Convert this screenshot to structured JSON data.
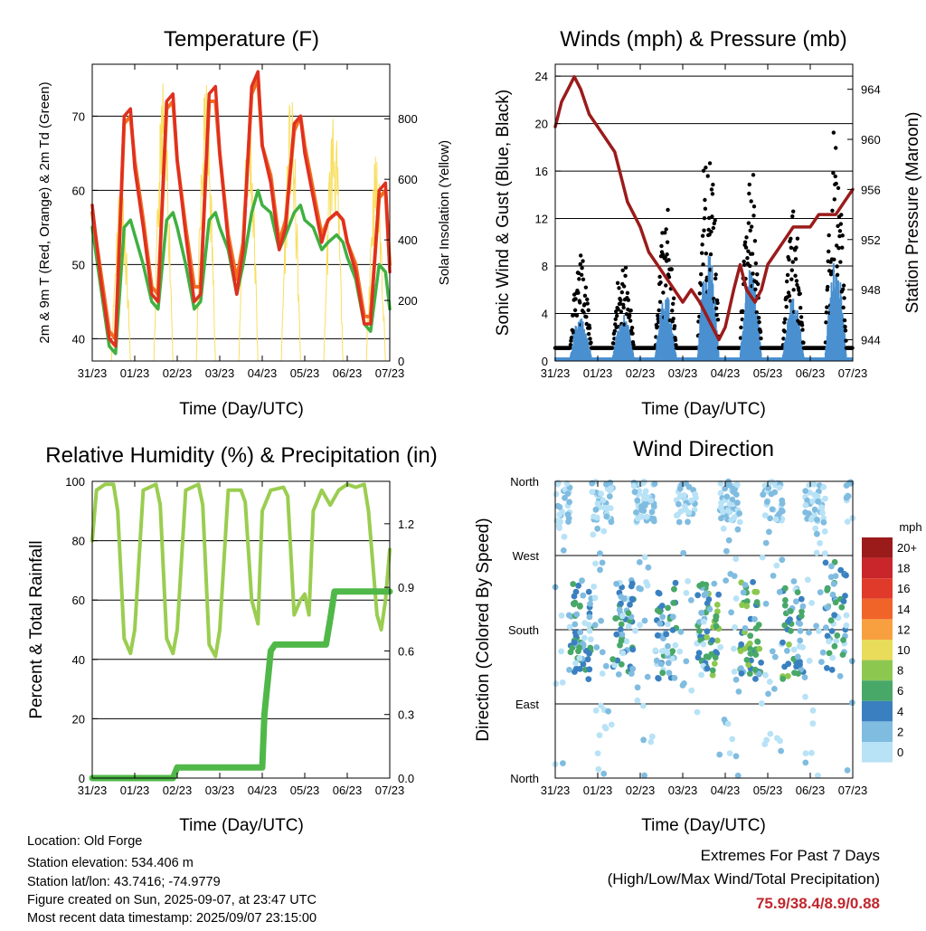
{
  "chart_data": [
    {
      "type": "line",
      "title": "Temperature (F)",
      "xlabel": "Time (Day/UTC)",
      "ylabel": "2m & 9m T (Red, Orange) & 2m Td (Green)",
      "y2label": "Solar Insolation (Yellow)",
      "ylim": [
        37,
        77
      ],
      "y2lim": [
        0,
        980
      ],
      "yticks": [
        40,
        50,
        60,
        70
      ],
      "y2ticks": [
        0,
        200,
        400,
        600,
        800
      ],
      "x_ticks": [
        "31/23",
        "01/23",
        "02/23",
        "03/23",
        "04/23",
        "05/23",
        "06/23",
        "07/23"
      ],
      "series": [
        {
          "color": "#e03020",
          "x": [
            0,
            0.2,
            0.4,
            0.55,
            0.75,
            0.9,
            1,
            1.2,
            1.4,
            1.55,
            1.75,
            1.9,
            2,
            2.2,
            2.4,
            2.55,
            2.75,
            2.9,
            3,
            3.2,
            3.4,
            3.55,
            3.75,
            3.9,
            4,
            4.2,
            4.4,
            4.55,
            4.75,
            4.9,
            5,
            5.2,
            5.4,
            5.55,
            5.75,
            5.9,
            6,
            6.2,
            6.4,
            6.55,
            6.75,
            6.9,
            7
          ],
          "y": [
            58,
            48,
            40,
            39,
            70,
            71,
            63,
            55,
            46,
            45,
            72,
            73,
            64,
            54,
            45,
            46,
            73,
            74,
            65,
            53,
            46,
            52,
            74,
            76,
            66,
            61,
            52,
            55,
            69,
            70,
            65,
            59,
            53,
            56,
            57,
            56,
            53,
            49,
            42,
            42,
            60,
            61,
            49
          ]
        },
        {
          "color": "#f07020",
          "x": [
            0,
            0.2,
            0.4,
            0.55,
            0.75,
            0.9,
            1,
            1.2,
            1.4,
            1.55,
            1.75,
            1.9,
            2,
            2.2,
            2.4,
            2.55,
            2.75,
            2.9,
            3,
            3.2,
            3.4,
            3.55,
            3.75,
            3.9,
            4,
            4.2,
            4.4,
            4.55,
            4.75,
            4.9,
            5,
            5.2,
            5.4,
            5.55,
            5.75,
            5.9,
            6,
            6.2,
            6.4,
            6.55,
            6.75,
            6.9,
            7
          ],
          "y": [
            57,
            49,
            41,
            40,
            69,
            70,
            64,
            56,
            47,
            46,
            71,
            72,
            64,
            55,
            47,
            47,
            72,
            72,
            65,
            54,
            48,
            53,
            73,
            75,
            66,
            62,
            53,
            56,
            68,
            70,
            66,
            60,
            54,
            56,
            57,
            56,
            53,
            50,
            43,
            43,
            59,
            60,
            50
          ]
        },
        {
          "color": "#40b040",
          "x": [
            0,
            0.2,
            0.4,
            0.55,
            0.75,
            0.9,
            1,
            1.2,
            1.4,
            1.55,
            1.75,
            1.9,
            2,
            2.2,
            2.4,
            2.55,
            2.75,
            2.9,
            3,
            3.2,
            3.4,
            3.55,
            3.75,
            3.9,
            4,
            4.2,
            4.4,
            4.55,
            4.75,
            4.9,
            5,
            5.2,
            5.4,
            5.55,
            5.75,
            5.9,
            6,
            6.2,
            6.4,
            6.55,
            6.75,
            6.9,
            7
          ],
          "y": [
            55,
            47,
            39,
            38,
            55,
            56,
            54,
            50,
            45,
            44,
            56,
            57,
            55,
            50,
            44,
            45,
            56,
            57,
            55,
            52,
            46,
            50,
            57,
            60,
            58,
            57,
            52,
            54,
            57,
            58,
            56,
            55,
            52,
            53,
            54,
            53,
            51,
            48,
            42,
            41,
            50,
            49,
            44
          ]
        }
      ]
    },
    {
      "type": "line",
      "title": "Winds (mph) & Pressure (mb)",
      "xlabel": "Time (Day/UTC)",
      "ylabel": "Sonic Wind & Gust (Blue, Black)",
      "y2label": "Station Pressure (Maroon)",
      "ylim": [
        0,
        25
      ],
      "y2lim": [
        942.3,
        966
      ],
      "yticks": [
        0,
        4,
        8,
        12,
        16,
        20,
        24
      ],
      "y2ticks": [
        944,
        948,
        952,
        956,
        960,
        964
      ],
      "x_ticks": [
        "31/23",
        "01/23",
        "02/23",
        "03/23",
        "04/23",
        "05/23",
        "06/23",
        "07/23"
      ],
      "series": [
        {
          "color": "#9b1b1b",
          "x": [
            0,
            0.15,
            0.3,
            0.45,
            0.6,
            0.8,
            1,
            1.2,
            1.4,
            1.55,
            1.7,
            1.85,
            2,
            2.2,
            2.4,
            2.6,
            2.8,
            3,
            3.2,
            3.4,
            3.55,
            3.7,
            3.85,
            4,
            4.2,
            4.35,
            4.5,
            4.7,
            4.85,
            5,
            5.2,
            5.4,
            5.6,
            5.8,
            6,
            6.2,
            6.4,
            6.6,
            6.8,
            7
          ],
          "y": [
            961,
            963,
            964,
            965,
            964,
            962,
            961,
            960,
            959,
            957,
            955,
            954,
            953,
            951,
            950,
            949,
            948,
            947,
            948,
            947,
            946,
            945,
            944,
            945,
            948,
            950,
            948,
            947,
            948,
            950,
            951,
            952,
            953,
            953,
            953,
            954,
            954,
            954,
            955,
            956
          ]
        }
      ]
    },
    {
      "type": "line",
      "title": "Relative Humidity (%) & Precipitation (in)",
      "xlabel": "Time (Day/UTC)",
      "ylabel": "Percent & Total Rainfall",
      "ylim": [
        0,
        100
      ],
      "y2lim": [
        0,
        1.4
      ],
      "yticks": [
        0,
        20,
        40,
        60,
        80,
        100
      ],
      "y2ticks": [
        "0.0",
        "0.3",
        "0.6",
        "0.9",
        "1.2"
      ],
      "x_ticks": [
        "31/23",
        "01/23",
        "02/23",
        "03/23",
        "04/23",
        "05/23",
        "06/23",
        "07/23"
      ],
      "series": [
        {
          "color": "#9acd50",
          "x": [
            0,
            0.1,
            0.3,
            0.5,
            0.6,
            0.75,
            0.9,
            1,
            1.2,
            1.5,
            1.6,
            1.75,
            1.9,
            2,
            2.2,
            2.5,
            2.6,
            2.75,
            2.9,
            3,
            3.2,
            3.5,
            3.6,
            3.75,
            3.9,
            4,
            4.2,
            4.5,
            4.6,
            4.75,
            4.9,
            5,
            5.1,
            5.2,
            5.4,
            5.6,
            5.8,
            6,
            6.2,
            6.4,
            6.5,
            6.7,
            6.8,
            6.9,
            7
          ],
          "y": [
            80,
            97,
            99,
            99,
            90,
            47,
            42,
            50,
            97,
            99,
            92,
            47,
            42,
            50,
            97,
            99,
            92,
            45,
            41,
            50,
            97,
            97,
            93,
            60,
            52,
            90,
            97,
            98,
            95,
            55,
            60,
            62,
            55,
            90,
            97,
            92,
            97,
            99,
            98,
            99,
            90,
            55,
            50,
            60,
            77
          ]
        },
        {
          "color": "#50b848",
          "x": [
            0,
            1.9,
            2.0,
            4.0,
            4.05,
            4.1,
            4.15,
            4.2,
            4.3,
            5.5,
            5.6,
            5.7,
            6.3,
            7
          ],
          "y": [
            0,
            0,
            0.05,
            0.05,
            0.3,
            0.4,
            0.5,
            0.6,
            0.63,
            0.63,
            0.75,
            0.88,
            0.88,
            0.88
          ]
        }
      ]
    },
    {
      "type": "scatter",
      "title": "Wind Direction",
      "xlabel": "Time (Day/UTC)",
      "ylabel": "Direction (Colored By Speed)",
      "y_ticks": [
        "North",
        "West",
        "South",
        "East",
        "North"
      ],
      "x_ticks": [
        "31/23",
        "01/23",
        "02/23",
        "03/23",
        "04/23",
        "05/23",
        "06/23",
        "07/23"
      ],
      "legend_title": "mph",
      "legend_labels": [
        "20+",
        "18",
        "16",
        "14",
        "12",
        "10",
        "8",
        "6",
        "4",
        "2",
        "0"
      ],
      "legend_colors": [
        "#9b1b1b",
        "#c8262a",
        "#e03a2a",
        "#f0642a",
        "#f8a040",
        "#e8dc5a",
        "#8cc850",
        "#48a868",
        "#3a80c0",
        "#80bce0",
        "#b8e2f6"
      ],
      "legend_position": "right"
    }
  ],
  "info": {
    "location": "Location: Old Forge",
    "elevation": "Station elevation: 534.406 m",
    "latlon": "Station lat/lon: 43.7416; -74.9779",
    "created": "Figure created on Sun, 2025-09-07, at 23:47 UTC",
    "recent": "Most recent data timestamp: 2025/09/07 23:15:00"
  },
  "extremes": {
    "title": "Extremes For Past 7 Days",
    "subtitle": "(High/Low/Max Wind/Total Precipitation)",
    "values": "75.9/38.4/8.9/0.88"
  }
}
